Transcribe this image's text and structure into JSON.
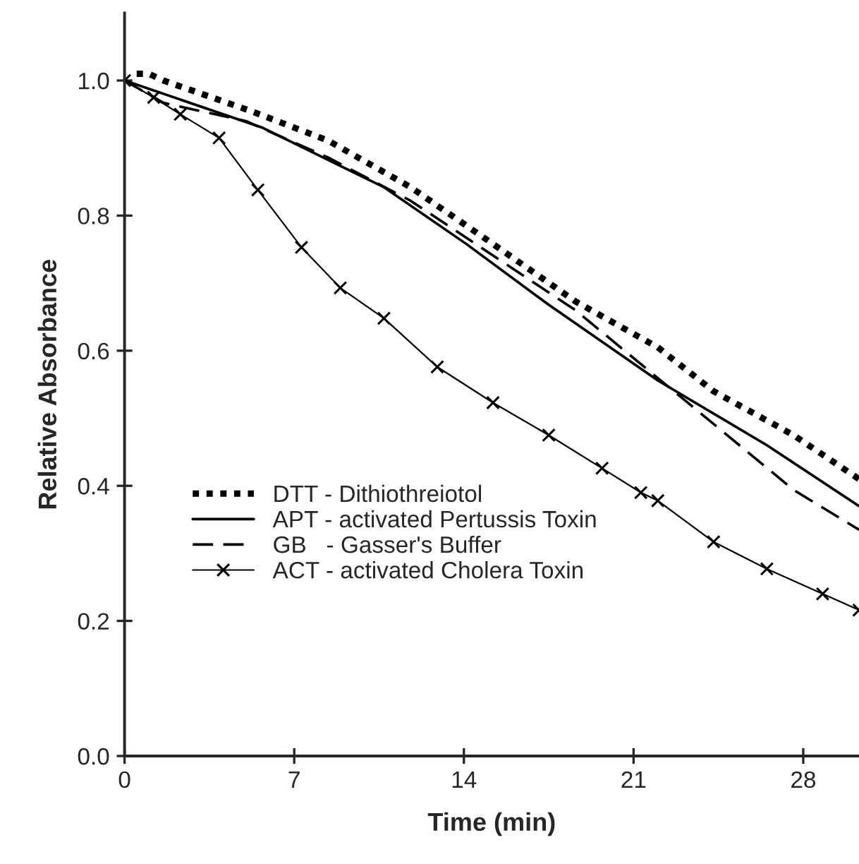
{
  "chart_data": {
    "type": "line",
    "xlabel": "Time (min)",
    "ylabel": "Relative Absorbance",
    "xlim": [
      0,
      30.3
    ],
    "ylim": [
      0,
      1.1
    ],
    "xticks": [
      0,
      7,
      14,
      21,
      28
    ],
    "yticks": [
      {
        "value": 0,
        "label": "0.0"
      },
      0.2,
      0.4,
      0.6,
      0.8,
      {
        "value": 1,
        "label": "1.0"
      }
    ],
    "grid": false,
    "legend": "bottom left",
    "series": [
      {
        "name": "DTT - Dithiothreiotol",
        "color": "#000000",
        "line_style": "dotted",
        "marker": "none",
        "x": [
          0.5,
          1,
          1.6,
          5.2,
          8.4,
          11.8,
          15.2,
          18.6,
          22.0,
          24.3,
          27.6,
          30.3
        ],
        "values": [
          1.01,
          1.01,
          1.0,
          0.955,
          0.911,
          0.842,
          0.758,
          0.673,
          0.605,
          0.54,
          0.475,
          0.41
        ]
      },
      {
        "name": "APT - activated Pertussis Toxin",
        "color": "#000000",
        "line_style": "solid",
        "marker": "none",
        "x": [
          0,
          5.7,
          10.7,
          14.1,
          17.5,
          22.0,
          26.5,
          30.3
        ],
        "values": [
          1.0,
          0.93,
          0.842,
          0.758,
          0.668,
          0.556,
          0.46,
          0.37
        ]
      },
      {
        "name": "GB   - Gasser's Buffer",
        "color": "#000000",
        "line_style": "dashed",
        "marker": "none",
        "x": [
          0,
          1.6,
          5.0,
          8.4,
          11.8,
          15.2,
          18.6,
          23.1,
          27.6,
          30.3
        ],
        "values": [
          1.0,
          0.967,
          0.94,
          0.886,
          0.822,
          0.741,
          0.66,
          0.527,
          0.394,
          0.335
        ]
      },
      {
        "name": "ACT - activated Cholera Toxin",
        "color": "#000000",
        "line_style": "solid",
        "marker": "cross",
        "x": [
          0,
          1.2,
          2.3,
          3.9,
          5.5,
          7.3,
          8.9,
          10.7,
          12.9,
          15.2,
          17.5,
          19.7,
          21.3,
          22.0,
          24.3,
          26.5,
          28.8,
          30.3
        ],
        "values": [
          1.0,
          0.975,
          0.95,
          0.915,
          0.838,
          0.753,
          0.693,
          0.648,
          0.576,
          0.523,
          0.475,
          0.426,
          0.39,
          0.378,
          0.317,
          0.277,
          0.24,
          0.216
        ]
      }
    ]
  }
}
